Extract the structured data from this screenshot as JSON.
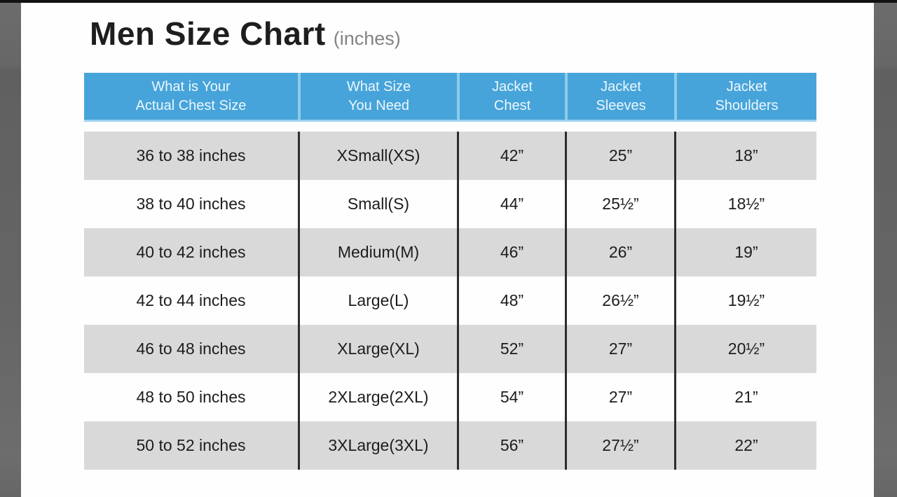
{
  "page": {
    "title": "Men Size Chart",
    "title_suffix": "(inches)"
  },
  "colors": {
    "header_blue": "#47a4da",
    "header_separator_blue": "#8ecbea",
    "row_gray": "#d9d9d9",
    "row_white": "#fefefe",
    "divider_dark": "#2d2d2d",
    "letterbox_gray": "#666666",
    "title_text": "#1e1e1e",
    "suffix_gray": "#838383"
  },
  "table": {
    "headers": [
      {
        "line1": "What is Your",
        "line2": "Actual Chest Size"
      },
      {
        "line1": "What Size",
        "line2": "You Need"
      },
      {
        "line1": "Jacket",
        "line2": "Chest"
      },
      {
        "line1": "Jacket",
        "line2": "Sleeves"
      },
      {
        "line1": "Jacket",
        "line2": "Shoulders"
      }
    ],
    "rows": [
      {
        "cells": [
          "36 to 38 inches",
          "XSmall(XS)",
          "42”",
          "25”",
          "18”"
        ]
      },
      {
        "cells": [
          "38 to 40 inches",
          "Small(S)",
          "44”",
          "25½”",
          "18½”"
        ]
      },
      {
        "cells": [
          "40 to 42 inches",
          "Medium(M)",
          "46”",
          "26”",
          "19”"
        ]
      },
      {
        "cells": [
          "42 to 44 inches",
          "Large(L)",
          "48”",
          "26½”",
          "19½”"
        ]
      },
      {
        "cells": [
          "46 to 48 inches",
          "XLarge(XL)",
          "52”",
          "27”",
          "20½”"
        ]
      },
      {
        "cells": [
          "48 to 50 inches",
          "2XLarge(2XL)",
          "54”",
          "27”",
          "21”"
        ]
      },
      {
        "cells": [
          "50 to 52 inches",
          "3XLarge(3XL)",
          "56”",
          "27½”",
          "22”"
        ]
      }
    ]
  },
  "chart_data": {
    "type": "table",
    "title": "Men Size Chart (inches)",
    "columns": [
      "What is Your Actual Chest Size",
      "What Size You Need",
      "Jacket Chest",
      "Jacket Sleeves",
      "Jacket Shoulders"
    ],
    "rows": [
      [
        "36 to 38 inches",
        "XSmall(XS)",
        "42\"",
        "25\"",
        "18\""
      ],
      [
        "38 to 40 inches",
        "Small(S)",
        "44\"",
        "25.5\"",
        "18.5\""
      ],
      [
        "40 to 42 inches",
        "Medium(M)",
        "46\"",
        "26\"",
        "19\""
      ],
      [
        "42 to 44 inches",
        "Large(L)",
        "48\"",
        "26.5\"",
        "19.5\""
      ],
      [
        "46 to 48 inches",
        "XLarge(XL)",
        "52\"",
        "27\"",
        "20.5\""
      ],
      [
        "48 to 50 inches",
        "2XLarge(2XL)",
        "54\"",
        "27\"",
        "21\""
      ],
      [
        "50 to 52 inches",
        "3XLarge(3XL)",
        "56\"",
        "27.5\"",
        "22\""
      ]
    ],
    "layout": {
      "header_background": "#47a4da",
      "alternating_row_colors": [
        "#d9d9d9",
        "#fefefe"
      ],
      "first_data_row_shade": "gray"
    }
  }
}
